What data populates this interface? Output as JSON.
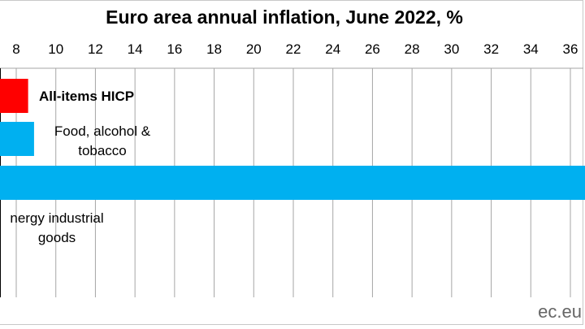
{
  "chart_data": {
    "type": "bar",
    "orientation": "horizontal",
    "title": "Euro area annual inflation, June 2022, %",
    "source": "ec.eu",
    "x_ticks": [
      "8",
      "10",
      "12",
      "14",
      "16",
      "18",
      "20",
      "22",
      "24",
      "26",
      "28",
      "30",
      "32",
      "34",
      "36"
    ],
    "xlim": [
      7,
      38
    ],
    "grid": true,
    "categories": [
      {
        "label_lines": [
          "All-items HICP"
        ],
        "value": 8.6,
        "color": "#ff0000",
        "bold": true
      },
      {
        "label_lines": [
          "Food, alcohol &",
          "tobacco"
        ],
        "value": 8.9,
        "color": "#00b0f0",
        "bold": false
      },
      {
        "label_lines": [
          "nergy industrial",
          "goods"
        ],
        "value": 42.0,
        "color": "#00b0f0",
        "bold": false
      }
    ]
  }
}
